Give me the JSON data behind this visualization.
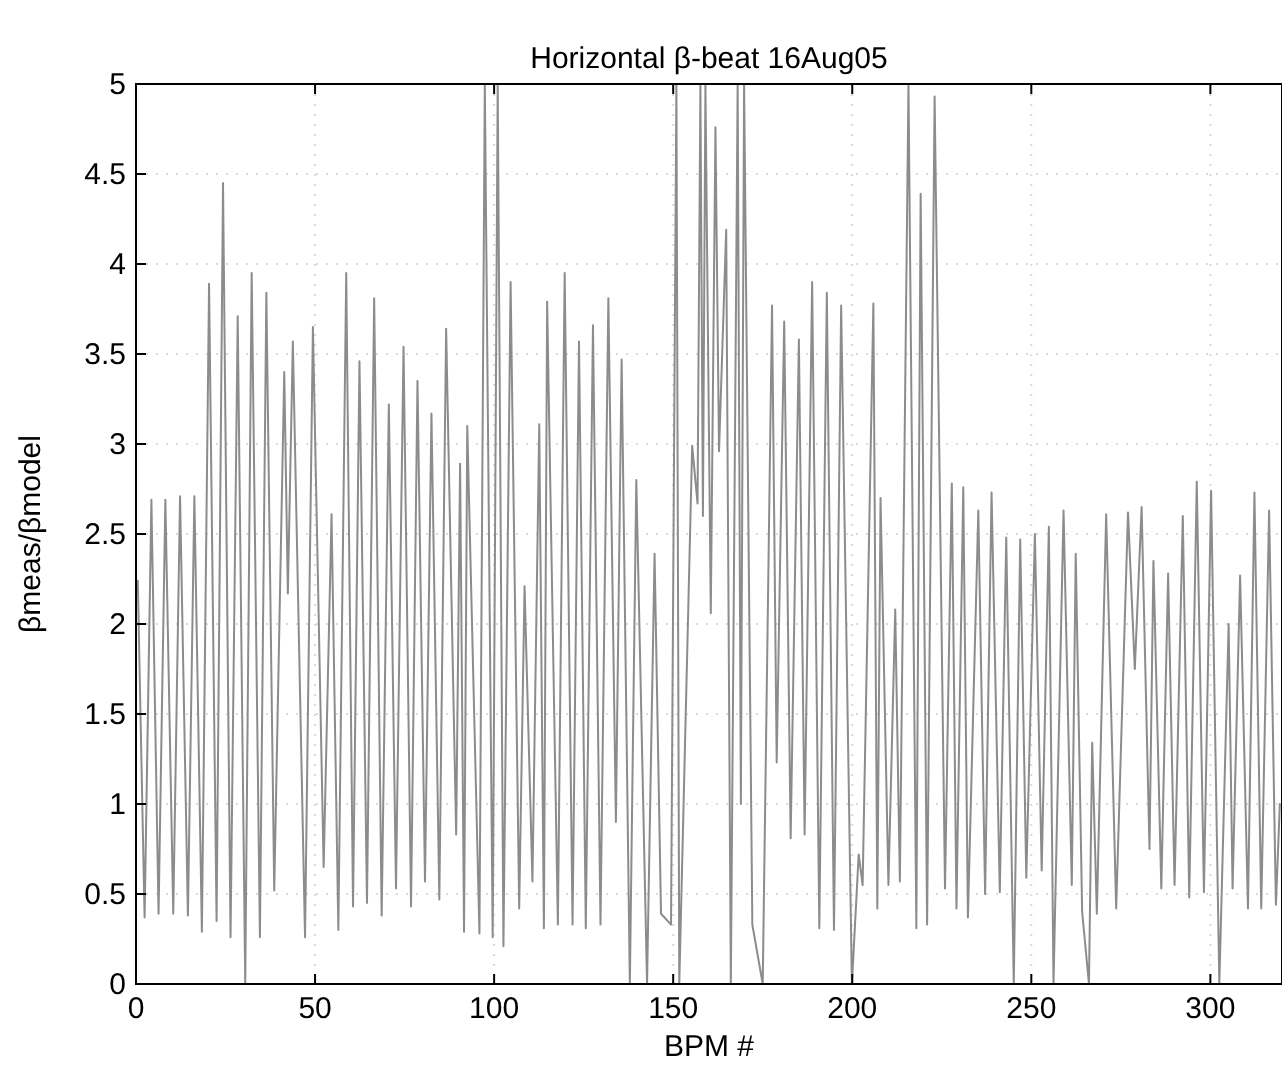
{
  "chart_data": {
    "type": "line",
    "title": "Horizontal β-beat 16Aug05",
    "xlabel": "BPM #",
    "ylabel": "βmeas/βmodel",
    "xlim": [
      0,
      320
    ],
    "ylim": [
      0,
      5
    ],
    "xticks": [
      0,
      50,
      100,
      150,
      200,
      250,
      300
    ],
    "yticks": [
      0,
      0.5,
      1,
      1.5,
      2,
      2.5,
      3,
      3.5,
      4,
      4.5,
      5
    ],
    "grid": true,
    "line_style": "solid",
    "marker": "none",
    "series": [
      {
        "color": "#8c8c8c",
        "x": [
          0.5,
          2.4,
          4.3,
          6.3,
          8.2,
          10.4,
          12.3,
          14.5,
          16.3,
          18.4,
          20.4,
          22.5,
          24.3,
          26.4,
          28.4,
          30.5,
          32.3,
          34.6,
          36.4,
          38.6,
          41.4,
          42.4,
          43.8,
          47.2,
          49.4,
          52.4,
          54.6,
          56.5,
          58.7,
          60.6,
          62.4,
          64.5,
          66.5,
          68.6,
          70.6,
          72.6,
          74.7,
          76.8,
          78.6,
          80.7,
          82.5,
          84.7,
          86.6,
          89.4,
          90.5,
          91.6,
          92.5,
          95.9,
          97.4,
          99.6,
          101,
          102.6,
          104.6,
          107.0,
          108.5,
          110.7,
          112.6,
          113.9,
          114.8,
          117.8,
          119.7,
          121.9,
          123.7,
          125.6,
          127.6,
          129.7,
          131.9,
          134.0,
          135.6,
          137.9,
          139.7,
          142.7,
          144.8,
          146.6,
          149.4,
          150.9,
          151.7,
          155.3,
          156.8,
          157.6,
          158.3,
          159.0,
          160.5,
          161.8,
          162.8,
          164.8,
          166.1,
          168.0,
          168.9,
          169.8,
          172.1,
          175.0,
          177.6,
          178.9,
          181.0,
          182.8,
          185.1,
          186.7,
          188.8,
          190.8,
          192.9,
          194.9,
          196.9,
          199.9,
          201.8,
          202.9,
          205.9,
          207.0,
          207.9,
          210.1,
          212.0,
          213.3,
          215.7,
          217.9,
          219.1,
          220.9,
          223.0,
          225.9,
          227.8,
          229.1,
          231.0,
          232.3,
          235.2,
          237.1,
          238.9,
          241.2,
          243.0,
          245.1,
          246.9,
          248.6,
          251.0,
          252.9,
          254.9,
          256.2,
          259.0,
          261.3,
          262.4,
          264.2,
          266.1,
          267.0,
          268.3,
          270.9,
          273.7,
          277.0,
          278.9,
          280.8,
          283.0,
          284.1,
          286.3,
          288.2,
          290.0,
          292.3,
          294.1,
          296.2,
          298.2,
          300.2,
          302.5,
          305.1,
          306.2,
          308.3,
          310.5,
          312.3,
          314.2,
          316.4,
          318.3,
          319.4
        ],
        "values": [
          2.24,
          0.37,
          2.69,
          0.39,
          2.69,
          0.39,
          2.71,
          0.38,
          2.71,
          0.29,
          3.89,
          0.35,
          4.45,
          0.26,
          3.71,
          0,
          3.95,
          0.26,
          3.84,
          0.52,
          3.4,
          2.17,
          3.57,
          0.26,
          3.65,
          0.65,
          2.61,
          0.3,
          3.95,
          0.43,
          3.46,
          0.45,
          3.81,
          0.38,
          3.22,
          0.53,
          3.54,
          0.43,
          3.35,
          0.57,
          3.17,
          0.47,
          3.64,
          0.83,
          2.89,
          0.29,
          3.1,
          0.28,
          5,
          0.26,
          5,
          0.21,
          3.9,
          0.42,
          2.21,
          0.57,
          3.11,
          0.31,
          3.79,
          0.33,
          3.95,
          0.33,
          3.57,
          0.31,
          3.66,
          0.33,
          3.81,
          0.9,
          3.47,
          0,
          2.8,
          0,
          2.39,
          0.39,
          0.33,
          5,
          0,
          2.99,
          2.67,
          5,
          2.6,
          5,
          2.06,
          4.76,
          2.96,
          4.19,
          0,
          5,
          1,
          5,
          0.33,
          0,
          3.77,
          1.23,
          3.68,
          0.81,
          3.58,
          0.83,
          3.9,
          0.31,
          3.84,
          0.3,
          3.77,
          0,
          0.72,
          0.55,
          3.78,
          0.42,
          2.7,
          0.55,
          2.08,
          0.57,
          5,
          0.31,
          4.39,
          0.33,
          4.93,
          0.53,
          2.78,
          0.42,
          2.76,
          0.37,
          2.63,
          0.5,
          2.73,
          0.51,
          2.48,
          0,
          2.47,
          0.59,
          2.5,
          0.63,
          2.54,
          0,
          2.63,
          0.55,
          2.39,
          0.4,
          0,
          1.34,
          0.39,
          2.61,
          0.42,
          2.62,
          1.75,
          2.65,
          0.75,
          2.35,
          0.53,
          2.28,
          0.55,
          2.6,
          0.48,
          2.79,
          0.51,
          2.74,
          0,
          2,
          0.53,
          2.27,
          0.42,
          2.73,
          0.42,
          2.63,
          0.44,
          1.0
        ]
      }
    ]
  }
}
